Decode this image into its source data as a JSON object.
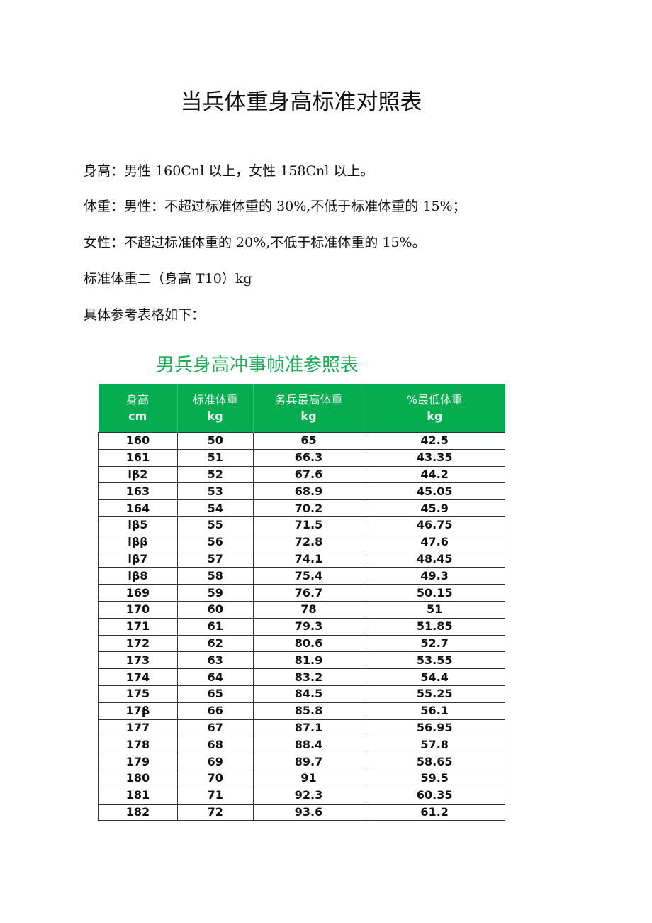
{
  "title": "当兵体重身高标准对照表",
  "paragraphs": [
    "身高：男性 160Cnl 以上，女性 158Cnl 以上。",
    "体重：男性：不超过标准体重的 30%,不低于标准体重的 15%；",
    "女性：不超过标准体重的 20%,不低于标准体重的 15%。",
    "标准体重二（身高 T10）kg",
    "具体参考表格如下："
  ],
  "table": {
    "title": "男兵身高冲事帧准参照表",
    "header_color": "#05ad50",
    "headers": [
      {
        "label": "身高",
        "unit": "cm"
      },
      {
        "label": "标准体重",
        "unit": "kg"
      },
      {
        "label": "务兵最高体重",
        "unit": "kg"
      },
      {
        "label": "%最低体重",
        "unit": "kg"
      }
    ],
    "rows": [
      [
        "160",
        "50",
        "65",
        "42.5"
      ],
      [
        "161",
        "51",
        "66.3",
        "43.35"
      ],
      [
        "lβ2",
        "52",
        "67.6",
        "44.2"
      ],
      [
        "163",
        "53",
        "68.9",
        "45.05"
      ],
      [
        "164",
        "54",
        "70.2",
        "45.9"
      ],
      [
        "lβ5",
        "55",
        "71.5",
        "46.75"
      ],
      [
        "lββ",
        "56",
        "72.8",
        "47.6"
      ],
      [
        "lβ7",
        "57",
        "74.1",
        "48.45"
      ],
      [
        "lβ8",
        "58",
        "75.4",
        "49.3"
      ],
      [
        "169",
        "59",
        "76.7",
        "50.15"
      ],
      [
        "170",
        "60",
        "78",
        "51"
      ],
      [
        "171",
        "61",
        "79.3",
        "51.85"
      ],
      [
        "172",
        "62",
        "80.6",
        "52.7"
      ],
      [
        "173",
        "63",
        "81.9",
        "53.55"
      ],
      [
        "174",
        "64",
        "83.2",
        "54.4"
      ],
      [
        "175",
        "65",
        "84.5",
        "55.25"
      ],
      [
        "17β",
        "66",
        "85.8",
        "56.1"
      ],
      [
        "177",
        "67",
        "87.1",
        "56.95"
      ],
      [
        "178",
        "68",
        "88.4",
        "57.8"
      ],
      [
        "179",
        "69",
        "89.7",
        "58.65"
      ],
      [
        "180",
        "70",
        "91",
        "59.5"
      ],
      [
        "181",
        "71",
        "92.3",
        "60.35"
      ],
      [
        "182",
        "72",
        "93.6",
        "61.2"
      ]
    ]
  }
}
